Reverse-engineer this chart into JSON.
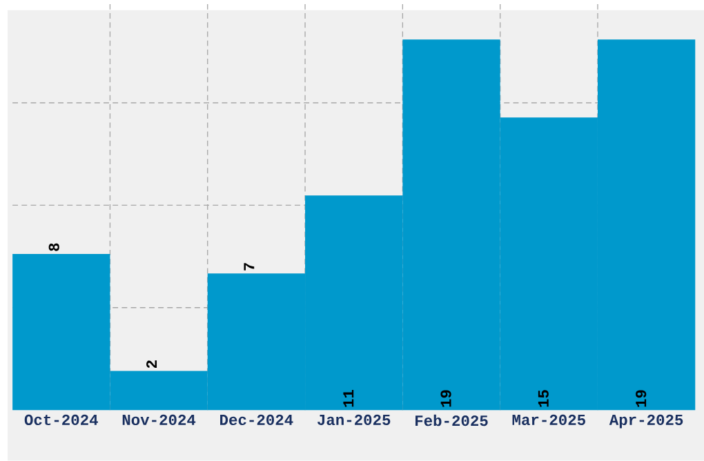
{
  "chart_data": {
    "type": "bar",
    "categories": [
      "Oct-2024",
      "Nov-2024",
      "Dec-2024",
      "Jan-2025",
      "Feb-2025",
      "Mar-2025",
      "Apr-2025"
    ],
    "values": [
      8,
      2,
      7,
      11,
      19,
      15,
      19
    ],
    "color": "#0099cc",
    "data_labels": true,
    "ylim": [
      0,
      21
    ],
    "yticks": [
      {
        "value": 5.25,
        "label": null
      },
      {
        "value": 10.5,
        "label": null
      },
      {
        "value": 15.75,
        "label": null
      }
    ],
    "tick_labels": "x",
    "grid": true
  }
}
